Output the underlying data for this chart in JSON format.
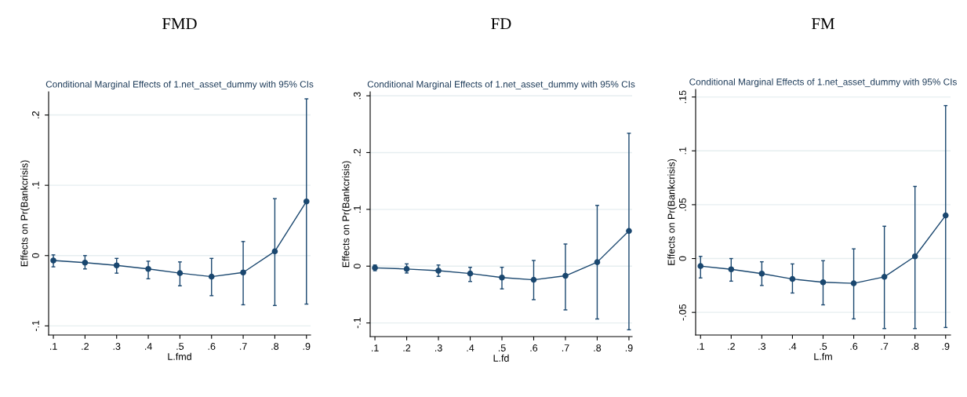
{
  "chart_data": [
    {
      "type": "line",
      "title": "FMD",
      "subtitle": "Conditional Marginal Effects of 1.net_asset_dummy with 95% CIs",
      "xlabel": "L.fmd",
      "ylabel": "Effects on Pr(Bankcrisis)",
      "x": [
        0.1,
        0.2,
        0.3,
        0.4,
        0.5,
        0.6,
        0.7,
        0.8,
        0.9
      ],
      "xlim": [
        0.085,
        0.913
      ],
      "ylim": [
        -0.113,
        0.233
      ],
      "xticks": [
        {
          "value": 0.1,
          "label": ".1"
        },
        {
          "value": 0.2,
          "label": ".2"
        },
        {
          "value": 0.3,
          "label": ".3"
        },
        {
          "value": 0.4,
          "label": ".4"
        },
        {
          "value": 0.5,
          "label": ".5"
        },
        {
          "value": 0.6,
          "label": ".6"
        },
        {
          "value": 0.7,
          "label": ".7"
        },
        {
          "value": 0.8,
          "label": ".8"
        },
        {
          "value": 0.9,
          "label": ".9"
        }
      ],
      "yticks": [
        {
          "value": -0.1,
          "label": "-.1"
        },
        0,
        {
          "value": 0.1,
          "label": ".1"
        },
        {
          "value": 0.2,
          "label": ".2"
        }
      ],
      "grid": "y",
      "marker": "circle",
      "line_style": "solid",
      "series": [
        {
          "color": "#1a476f",
          "values": [
            -0.007,
            -0.01,
            -0.014,
            -0.019,
            -0.025,
            -0.03,
            -0.024,
            0.006,
            0.077
          ],
          "errors": [
            [
              -0.016,
              0.001
            ],
            [
              -0.019,
              0.0
            ],
            [
              -0.025,
              -0.004
            ],
            [
              -0.033,
              -0.008
            ],
            [
              -0.043,
              -0.009
            ],
            [
              -0.057,
              -0.004
            ],
            [
              -0.07,
              0.02
            ],
            [
              -0.071,
              0.081
            ],
            [
              -0.069,
              0.223
            ]
          ]
        }
      ]
    },
    {
      "type": "line",
      "title": "FD",
      "subtitle": "Conditional Marginal Effects of 1.net_asset_dummy with 95% CIs",
      "xlabel": "L.fd",
      "ylabel": "Effects on Pr(Bankcrisis)",
      "x": [
        0.1,
        0.2,
        0.3,
        0.4,
        0.5,
        0.6,
        0.7,
        0.8,
        0.9
      ],
      "xlim": [
        0.085,
        0.91
      ],
      "ylim": [
        -0.124,
        0.307
      ],
      "xticks": [
        {
          "value": 0.1,
          "label": ".1"
        },
        {
          "value": 0.2,
          "label": ".2"
        },
        {
          "value": 0.3,
          "label": ".3"
        },
        {
          "value": 0.4,
          "label": ".4"
        },
        {
          "value": 0.5,
          "label": ".5"
        },
        {
          "value": 0.6,
          "label": ".6"
        },
        {
          "value": 0.7,
          "label": ".7"
        },
        {
          "value": 0.8,
          "label": ".8"
        },
        {
          "value": 0.9,
          "label": ".9"
        }
      ],
      "yticks": [
        {
          "value": -0.1,
          "label": "-.1"
        },
        0,
        {
          "value": 0.1,
          "label": ".1"
        },
        {
          "value": 0.2,
          "label": ".2"
        },
        {
          "value": 0.3,
          "label": ".3"
        }
      ],
      "grid": "y",
      "marker": "circle",
      "line_style": "solid",
      "series": [
        {
          "color": "#1a476f",
          "values": [
            -0.003,
            -0.005,
            -0.008,
            -0.013,
            -0.02,
            -0.024,
            -0.017,
            0.007,
            0.062
          ],
          "errors": [
            [
              -0.008,
              0.002
            ],
            [
              -0.012,
              0.004
            ],
            [
              -0.018,
              0.002
            ],
            [
              -0.027,
              -0.002
            ],
            [
              -0.04,
              -0.002
            ],
            [
              -0.059,
              0.01
            ],
            [
              -0.077,
              0.039
            ],
            [
              -0.093,
              0.107
            ],
            [
              -0.112,
              0.234
            ]
          ]
        }
      ]
    },
    {
      "type": "line",
      "title": "FM",
      "subtitle": "Conditional Marginal Effects of 1.net_asset_dummy with 95% CIs",
      "xlabel": "L.fm",
      "ylabel": "Effects on Pr(Bankcrisis)",
      "x": [
        0.1,
        0.2,
        0.3,
        0.4,
        0.5,
        0.6,
        0.7,
        0.8,
        0.9
      ],
      "xlim": [
        0.084,
        0.916
      ],
      "ylim": [
        -0.071,
        0.157
      ],
      "xticks": [
        {
          "value": 0.1,
          "label": ".1"
        },
        {
          "value": 0.2,
          "label": ".2"
        },
        {
          "value": 0.3,
          "label": ".3"
        },
        {
          "value": 0.4,
          "label": ".4"
        },
        {
          "value": 0.5,
          "label": ".5"
        },
        {
          "value": 0.6,
          "label": ".6"
        },
        {
          "value": 0.7,
          "label": ".7"
        },
        {
          "value": 0.8,
          "label": ".8"
        },
        {
          "value": 0.9,
          "label": ".9"
        }
      ],
      "yticks": [
        {
          "value": -0.05,
          "label": "-.05"
        },
        0,
        {
          "value": 0.05,
          "label": ".05"
        },
        {
          "value": 0.1,
          "label": ".1"
        },
        {
          "value": 0.15,
          "label": ".15"
        }
      ],
      "grid": "y",
      "marker": "circle",
      "line_style": "solid",
      "series": [
        {
          "color": "#1a476f",
          "values": [
            -0.007,
            -0.01,
            -0.014,
            -0.019,
            -0.022,
            -0.023,
            -0.017,
            0.002,
            0.04
          ],
          "errors": [
            [
              -0.018,
              0.002
            ],
            [
              -0.021,
              0.0
            ],
            [
              -0.025,
              -0.003
            ],
            [
              -0.032,
              -0.005
            ],
            [
              -0.043,
              -0.002
            ],
            [
              -0.056,
              0.009
            ],
            [
              -0.065,
              0.03
            ],
            [
              -0.065,
              0.067
            ],
            [
              -0.064,
              0.142
            ]
          ]
        }
      ]
    }
  ]
}
